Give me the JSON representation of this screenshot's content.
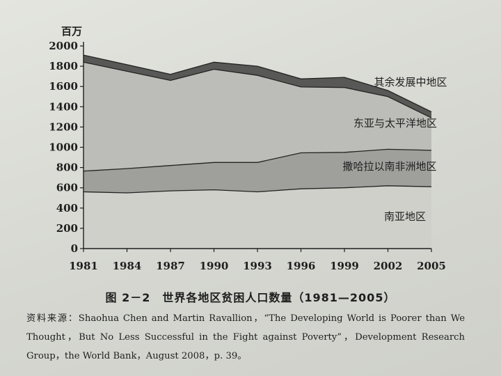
{
  "chart_data": {
    "type": "area",
    "ylabel": "百万",
    "ylim": [
      0,
      2000
    ],
    "yticks": [
      0,
      200,
      400,
      600,
      800,
      1000,
      1200,
      1400,
      1600,
      1800,
      2000
    ],
    "x": [
      1981,
      1984,
      1987,
      1990,
      1993,
      1996,
      1999,
      2002,
      2005
    ],
    "stacked": true,
    "series": [
      {
        "name": "南亚地区",
        "values": [
          560,
          550,
          570,
          580,
          560,
          590,
          600,
          620,
          610
        ],
        "color": "#cfd0ca"
      },
      {
        "name": "撒哈拉以南非洲地区",
        "values": [
          205,
          240,
          250,
          270,
          290,
          355,
          350,
          360,
          360
        ],
        "color": "#9fa09c"
      },
      {
        "name": "东亚与太平洋地区",
        "values": [
          1075,
          960,
          840,
          920,
          860,
          650,
          640,
          520,
          320
        ],
        "color": "#bcbdb8"
      },
      {
        "name": "其余发展中地区",
        "values": [
          70,
          65,
          60,
          70,
          90,
          80,
          100,
          60,
          60
        ],
        "color": "#585956"
      }
    ],
    "legend": "inline-labels-right"
  },
  "figure": {
    "caption": "图 2－2　世界各地区贫困人口数量（1981—2005）",
    "source": "资料来源：Shaohua Chen and Martin Ravallion，“The Developing World is Poorer than We Thought，But No Less Successful in the Fight against Poverty”，Development Research Group，the World Bank，August 2008，p. 39。"
  }
}
